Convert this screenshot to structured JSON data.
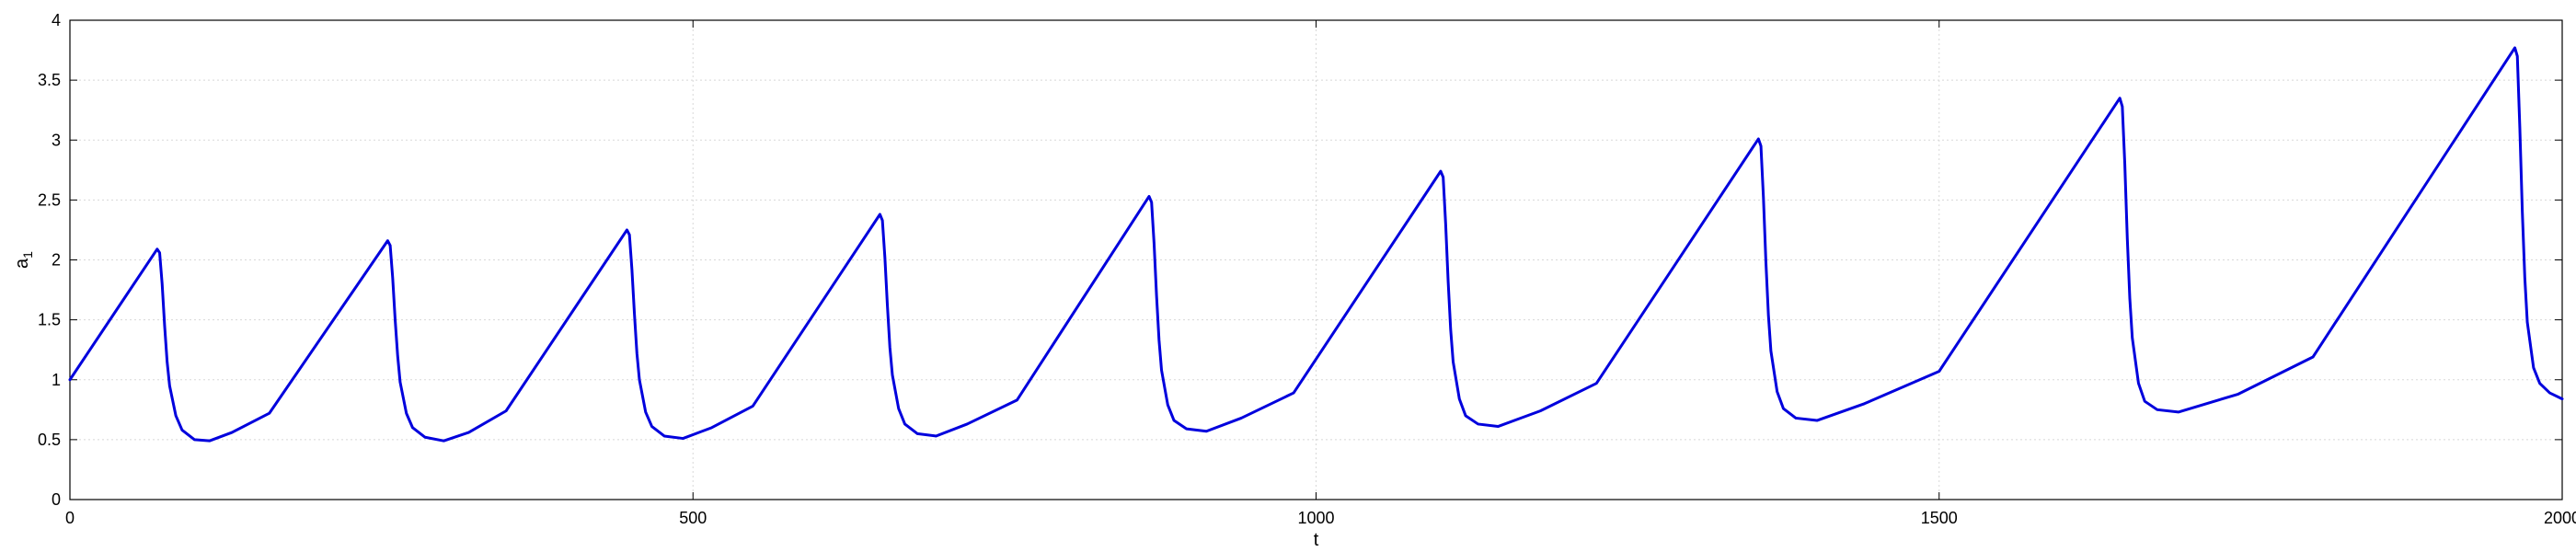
{
  "chart_data": {
    "type": "line",
    "title": "",
    "xlabel": "t",
    "ylabel": "a",
    "ylabel_subscript": "1",
    "xlim": [
      0,
      2000
    ],
    "ylim": [
      0,
      4
    ],
    "xticks": [
      0,
      500,
      1000,
      1500,
      2000
    ],
    "yticks": [
      0,
      0.5,
      1,
      1.5,
      2,
      2.5,
      3,
      3.5,
      4
    ],
    "xtick_labels": [
      "0",
      "500",
      "1000",
      "1500",
      "2000"
    ],
    "ytick_labels": [
      "0",
      "0.5",
      "1",
      "1.5",
      "2",
      "2.5",
      "3",
      "3.5",
      "4"
    ],
    "grid": true,
    "series": [
      {
        "color": "#0000dd",
        "x": [
          0,
          70,
          72,
          74,
          76,
          78,
          80,
          85,
          90,
          100,
          112,
          130,
          160,
          255,
          257,
          259,
          261,
          263,
          265,
          270,
          275,
          285,
          300,
          320,
          350,
          447,
          449,
          451,
          453,
          455,
          457,
          462,
          467,
          477,
          492,
          515,
          548,
          650,
          652,
          654,
          656,
          658,
          660,
          665,
          670,
          680,
          695,
          720,
          760,
          866,
          868,
          870,
          872,
          874,
          876,
          881,
          886,
          896,
          912,
          940,
          982,
          1100,
          1102,
          1104,
          1106,
          1108,
          1110,
          1115,
          1120,
          1130,
          1146,
          1180,
          1225,
          1355,
          1357,
          1359,
          1361,
          1363,
          1365,
          1370,
          1375,
          1385,
          1402,
          1440,
          1500,
          1645,
          1647,
          1649,
          1651,
          1653,
          1655,
          1660,
          1665,
          1675,
          1692,
          1740,
          1800,
          1962,
          1964,
          1966,
          1968,
          1970,
          1972,
          1977,
          1982,
          1990,
          2000
        ],
        "y": [
          1.0,
          2.09,
          2.06,
          1.8,
          1.45,
          1.15,
          0.95,
          0.7,
          0.58,
          0.5,
          0.49,
          0.56,
          0.72,
          2.16,
          2.12,
          1.85,
          1.5,
          1.2,
          0.98,
          0.72,
          0.6,
          0.52,
          0.49,
          0.56,
          0.74,
          2.25,
          2.21,
          1.92,
          1.55,
          1.22,
          1.0,
          0.73,
          0.61,
          0.53,
          0.51,
          0.6,
          0.78,
          2.38,
          2.33,
          2.02,
          1.62,
          1.27,
          1.04,
          0.76,
          0.63,
          0.55,
          0.53,
          0.63,
          0.83,
          2.53,
          2.48,
          2.14,
          1.7,
          1.33,
          1.08,
          0.79,
          0.66,
          0.59,
          0.57,
          0.68,
          0.89,
          2.74,
          2.69,
          2.3,
          1.82,
          1.42,
          1.15,
          0.84,
          0.7,
          0.63,
          0.61,
          0.74,
          0.97,
          3.01,
          2.95,
          2.52,
          1.98,
          1.54,
          1.24,
          0.9,
          0.76,
          0.68,
          0.66,
          0.8,
          1.07,
          3.35,
          3.28,
          2.8,
          2.18,
          1.68,
          1.35,
          0.97,
          0.82,
          0.75,
          0.73,
          0.88,
          1.19,
          3.77,
          3.7,
          3.1,
          2.4,
          1.85,
          1.48,
          1.1,
          0.97,
          0.89,
          0.84
        ]
      }
    ]
  }
}
